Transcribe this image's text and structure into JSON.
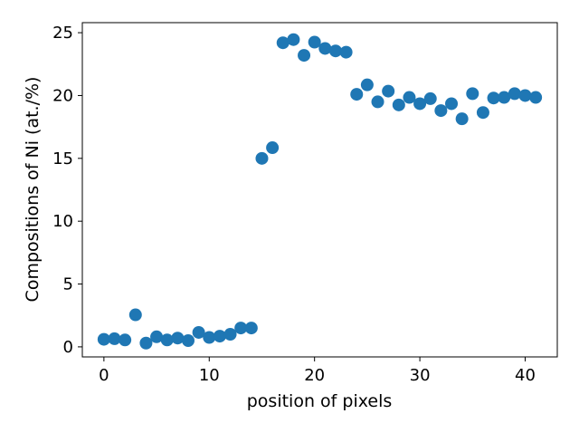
{
  "chart_data": {
    "type": "scatter",
    "title": "",
    "xlabel": "position of pixels",
    "ylabel": "Compositions of Ni (at./%)",
    "xlim": [
      -2.05,
      43.05
    ],
    "ylim": [
      -0.8,
      25.8
    ],
    "xticks": [
      0,
      10,
      20,
      30,
      40
    ],
    "yticks": [
      0,
      5,
      10,
      15,
      20,
      25
    ],
    "grid": false,
    "color": "#1f77b4",
    "series": [
      {
        "x": [
          0,
          1,
          2,
          3,
          4,
          5,
          6,
          7,
          8,
          9,
          10,
          11,
          12,
          13,
          14,
          15,
          16,
          17,
          18,
          19,
          20,
          21,
          22,
          23,
          24,
          25,
          26,
          27,
          28,
          29,
          30,
          31,
          32,
          33,
          34,
          35,
          36,
          37,
          38,
          39,
          40,
          41
        ],
        "y": [
          0.6,
          0.65,
          0.55,
          2.55,
          0.3,
          0.8,
          0.55,
          0.7,
          0.5,
          1.15,
          0.75,
          0.85,
          1.0,
          1.5,
          1.5,
          15.0,
          15.85,
          24.2,
          24.45,
          23.2,
          24.25,
          23.75,
          23.55,
          23.45,
          20.1,
          20.85,
          19.5,
          20.35,
          19.25,
          19.85,
          19.35,
          19.75,
          18.8,
          19.35,
          18.15,
          20.15,
          18.65,
          19.8,
          19.85,
          20.15,
          20.0,
          19.85
        ]
      }
    ]
  }
}
